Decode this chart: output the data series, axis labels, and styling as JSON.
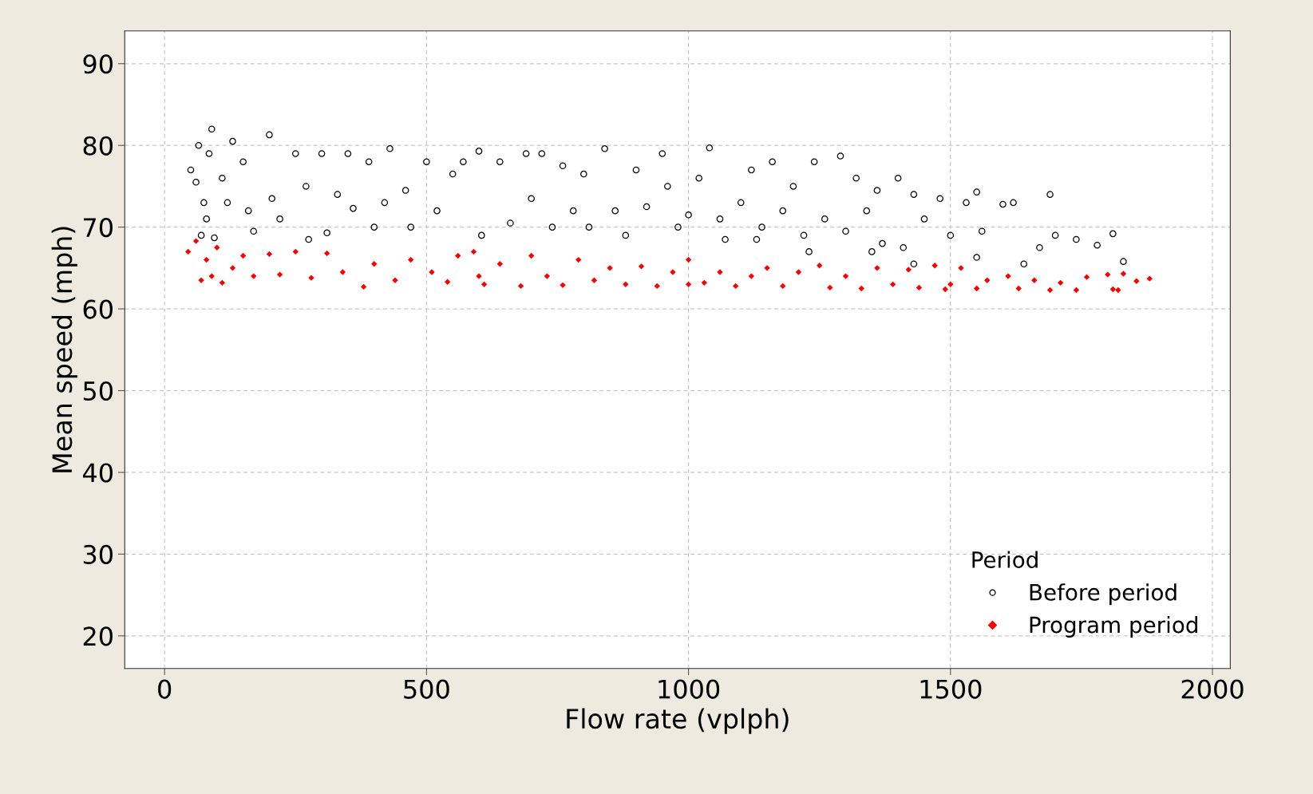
{
  "chart_data": {
    "type": "scatter",
    "xlabel": "Flow rate (vplph)",
    "ylabel": "Mean speed (mph)",
    "legend_title": "Period",
    "xlim": [
      -76,
      2034
    ],
    "ylim": [
      16,
      94
    ],
    "xticks": [
      0,
      500,
      1000,
      1500,
      2000
    ],
    "yticks": [
      20,
      30,
      40,
      50,
      60,
      70,
      80,
      90
    ],
    "grid": true,
    "legend": "bottom right",
    "series": [
      {
        "name": "Before period",
        "color": "#000000",
        "marker": "circle",
        "x": [
          90,
          200,
          130,
          65,
          85,
          50,
          60,
          75,
          80,
          70,
          95,
          110,
          120,
          150,
          160,
          170,
          205,
          220,
          250,
          270,
          275,
          300,
          310,
          330,
          350,
          360,
          390,
          400,
          420,
          430,
          460,
          470,
          500,
          520,
          550,
          570,
          600,
          605,
          640,
          660,
          690,
          700,
          720,
          740,
          760,
          780,
          800,
          810,
          840,
          860,
          880,
          900,
          920,
          950,
          960,
          980,
          1000,
          1020,
          1040,
          1060,
          1070,
          1100,
          1120,
          1140,
          1160,
          1180,
          1200,
          1220,
          1240,
          1260,
          1290,
          1300,
          1320,
          1340,
          1360,
          1370,
          1400,
          1410,
          1430,
          1450,
          1480,
          1500,
          1530,
          1550,
          1560,
          1600,
          1620,
          1640,
          1670,
          1690,
          1700,
          1740,
          1780,
          1810,
          1830,
          1430,
          1550,
          1350,
          1230,
          1130
        ],
        "values": [
          82,
          81.3,
          80.5,
          80,
          79,
          77,
          75.5,
          73,
          71,
          69,
          68.7,
          76,
          73,
          78,
          72,
          69.5,
          73.5,
          71,
          79,
          75,
          68.5,
          79,
          69.3,
          74,
          79,
          72.3,
          78,
          70,
          73,
          79.6,
          74.5,
          70,
          78,
          72,
          76.5,
          78,
          79.3,
          69,
          78,
          70.5,
          79,
          73.5,
          79,
          70,
          77.5,
          72,
          76.5,
          70,
          79.6,
          72,
          69,
          77,
          72.5,
          79,
          75,
          70,
          71.5,
          76,
          79.7,
          71,
          68.5,
          73,
          77,
          70,
          78,
          72,
          75,
          69,
          78,
          71,
          78.7,
          69.5,
          76,
          72,
          74.5,
          68,
          76,
          67.5,
          74,
          71,
          73.5,
          69,
          73,
          74.3,
          69.5,
          72.8,
          73,
          65.5,
          67.5,
          74,
          69,
          68.5,
          67.8,
          69.2,
          65.8,
          65.5,
          66.3,
          67,
          67,
          68.5
        ]
      },
      {
        "name": "Program period",
        "color": "#ff0000",
        "marker": "diamond",
        "x": [
          45,
          60,
          70,
          80,
          90,
          100,
          110,
          130,
          150,
          170,
          200,
          220,
          250,
          280,
          310,
          340,
          380,
          400,
          440,
          470,
          510,
          540,
          560,
          590,
          610,
          640,
          680,
          700,
          730,
          760,
          790,
          820,
          850,
          880,
          910,
          940,
          970,
          1000,
          1030,
          1060,
          1090,
          1120,
          1150,
          1180,
          1210,
          1250,
          1270,
          1300,
          1330,
          1360,
          1390,
          1420,
          1440,
          1470,
          1500,
          1520,
          1550,
          1570,
          1610,
          1630,
          1660,
          1690,
          1710,
          1740,
          1760,
          1800,
          1810,
          1830,
          1855,
          1880,
          1820,
          1490,
          1000,
          600
        ],
        "values": [
          67,
          68.3,
          63.5,
          66,
          64,
          67.5,
          63.2,
          65,
          66.5,
          64,
          66.7,
          64.2,
          67,
          63.8,
          66.8,
          64.5,
          62.7,
          65.5,
          63.5,
          66,
          64.5,
          63.3,
          66.5,
          67,
          63,
          65.5,
          62.8,
          66.5,
          64,
          62.9,
          66,
          63.5,
          65,
          63,
          65.2,
          62.8,
          64.5,
          66,
          63.2,
          64.5,
          62.8,
          64,
          65,
          62.8,
          64.5,
          65.3,
          62.6,
          64,
          62.5,
          65,
          63,
          64.8,
          62.6,
          65.3,
          63,
          65,
          62.5,
          63.5,
          64,
          62.5,
          63.5,
          62.3,
          63.2,
          62.3,
          63.9,
          64.2,
          62.4,
          64.3,
          63.4,
          63.7,
          62.3,
          62.4,
          63,
          64
        ]
      }
    ]
  }
}
